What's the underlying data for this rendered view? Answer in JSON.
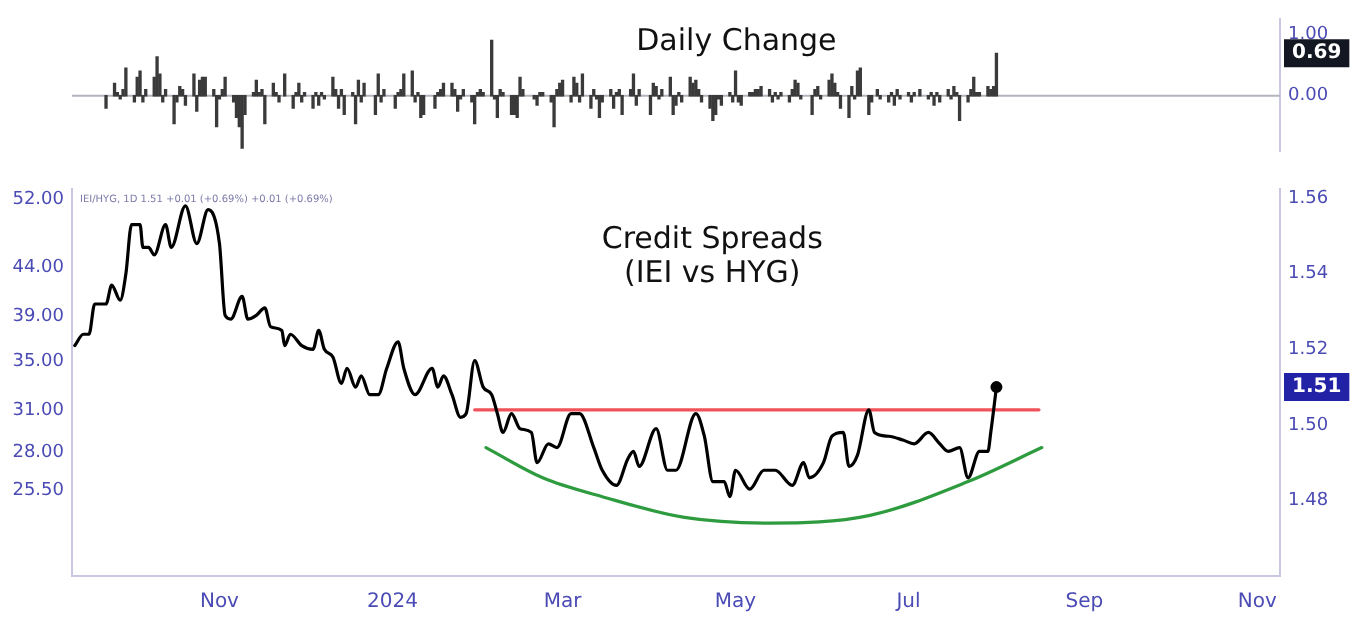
{
  "chart_data": [
    {
      "type": "bar",
      "title": "Daily Change",
      "color": "#3a3a3a",
      "x": [
        "2023-09-22",
        "2023-09-25",
        "2023-09-26",
        "2023-09-27",
        "2023-09-28",
        "2023-09-29",
        "2023-10-02",
        "2023-10-03",
        "2023-10-04",
        "2023-10-05",
        "2023-10-06",
        "2023-10-09",
        "2023-10-10",
        "2023-10-11",
        "2023-10-12",
        "2023-10-13",
        "2023-10-16",
        "2023-10-17",
        "2023-10-18",
        "2023-10-19",
        "2023-10-20",
        "2023-10-23",
        "2023-10-24",
        "2023-10-25",
        "2023-10-26",
        "2023-10-27",
        "2023-10-30",
        "2023-10-31",
        "2023-11-01",
        "2023-11-02",
        "2023-11-03",
        "2023-11-06",
        "2023-11-07",
        "2023-11-08",
        "2023-11-09",
        "2023-11-10",
        "2023-11-13",
        "2023-11-14",
        "2023-11-15",
        "2023-11-16",
        "2023-11-17",
        "2023-11-20",
        "2023-11-21",
        "2023-11-22",
        "2023-11-24",
        "2023-11-27",
        "2023-11-28",
        "2023-11-29",
        "2023-11-30",
        "2023-12-01",
        "2023-12-04",
        "2023-12-05",
        "2023-12-06",
        "2023-12-07",
        "2023-12-08",
        "2023-12-11",
        "2023-12-12",
        "2023-12-13",
        "2023-12-14",
        "2023-12-15",
        "2023-12-18",
        "2023-12-19",
        "2023-12-20",
        "2023-12-21",
        "2023-12-22",
        "2023-12-26",
        "2023-12-27",
        "2023-12-28",
        "2023-12-29",
        "2024-01-02",
        "2024-01-03",
        "2024-01-04",
        "2024-01-05",
        "2024-01-08",
        "2024-01-09",
        "2024-01-10",
        "2024-01-11",
        "2024-01-12",
        "2024-01-16",
        "2024-01-17",
        "2024-01-18",
        "2024-01-19",
        "2024-01-22",
        "2024-01-23",
        "2024-01-24",
        "2024-01-25",
        "2024-01-26",
        "2024-01-29",
        "2024-01-30",
        "2024-01-31",
        "2024-02-01",
        "2024-02-02",
        "2024-02-05",
        "2024-02-06",
        "2024-02-07",
        "2024-02-08",
        "2024-02-09",
        "2024-02-12",
        "2024-02-13",
        "2024-02-14",
        "2024-02-15",
        "2024-02-16",
        "2024-02-20",
        "2024-02-21",
        "2024-02-22",
        "2024-02-23",
        "2024-02-26",
        "2024-02-27",
        "2024-02-28",
        "2024-02-29",
        "2024-03-01",
        "2024-03-04",
        "2024-03-05",
        "2024-03-06",
        "2024-03-07",
        "2024-03-08",
        "2024-03-11",
        "2024-03-12",
        "2024-03-13",
        "2024-03-14",
        "2024-03-15",
        "2024-03-18",
        "2024-03-19",
        "2024-03-20",
        "2024-03-21",
        "2024-03-22",
        "2024-03-25",
        "2024-03-26",
        "2024-03-27",
        "2024-03-28",
        "2024-04-01",
        "2024-04-02",
        "2024-04-03",
        "2024-04-04",
        "2024-04-05",
        "2024-04-08",
        "2024-04-09",
        "2024-04-10",
        "2024-04-11",
        "2024-04-12",
        "2024-04-15",
        "2024-04-16",
        "2024-04-17",
        "2024-04-18",
        "2024-04-19",
        "2024-04-22",
        "2024-04-23",
        "2024-04-24",
        "2024-04-25",
        "2024-04-26",
        "2024-04-29",
        "2024-04-30",
        "2024-05-01",
        "2024-05-02",
        "2024-05-03",
        "2024-05-06",
        "2024-05-07",
        "2024-05-08",
        "2024-05-09",
        "2024-05-10",
        "2024-05-13",
        "2024-05-14",
        "2024-05-15",
        "2024-05-16",
        "2024-05-17",
        "2024-05-20",
        "2024-05-21",
        "2024-05-22",
        "2024-05-23",
        "2024-05-24",
        "2024-05-28",
        "2024-05-29",
        "2024-05-30",
        "2024-05-31",
        "2024-06-03",
        "2024-06-04",
        "2024-06-05",
        "2024-06-06",
        "2024-06-07",
        "2024-06-10",
        "2024-06-11",
        "2024-06-12",
        "2024-06-13",
        "2024-06-14",
        "2024-06-17",
        "2024-06-18",
        "2024-06-20",
        "2024-06-21",
        "2024-06-24",
        "2024-06-25",
        "2024-06-26",
        "2024-06-27",
        "2024-06-28",
        "2024-07-01",
        "2024-07-02",
        "2024-07-03",
        "2024-07-05",
        "2024-07-08",
        "2024-07-09",
        "2024-07-10",
        "2024-07-11",
        "2024-07-12",
        "2024-07-15",
        "2024-07-16",
        "2024-07-17",
        "2024-07-18",
        "2024-07-19",
        "2024-07-22",
        "2024-07-23",
        "2024-07-24",
        "2024-07-25",
        "2024-07-26",
        "2024-07-29",
        "2024-07-30",
        "2024-07-31",
        "2024-08-01"
      ],
      "values": [
        -0.2,
        0.2,
        0.05,
        -0.05,
        0.1,
        0.45,
        -0.1,
        0.3,
        0.4,
        -0.1,
        0.1,
        0.3,
        0.63,
        0.35,
        -0.1,
        0.1,
        -0.45,
        -0.1,
        0.15,
        0.1,
        -0.15,
        0.35,
        -0.25,
        0.25,
        0.3,
        0.3,
        0.1,
        -0.5,
        -0.05,
        0.1,
        0.3,
        -0.1,
        -0.35,
        -0.5,
        -0.85,
        -0.3,
        0.05,
        0.25,
        0.05,
        0.1,
        -0.45,
        0.2,
        0.05,
        -0.1,
        0.35,
        -0.2,
        0.05,
        0.2,
        -0.1,
        0.05,
        -0.2,
        0.05,
        -0.15,
        0.05,
        -0.05,
        0.3,
        0.1,
        -0.2,
        0.1,
        -0.3,
        0.05,
        -0.45,
        0.25,
        -0.1,
        0.2,
        -0.3,
        0.35,
        -0.1,
        0.1,
        -0.2,
        0.05,
        0.1,
        0.35,
        0.4,
        -0.1,
        0.05,
        -0.35,
        -0.3,
        -0.2,
        0.05,
        0.1,
        0.2,
        0.2,
        0.1,
        -0.25,
        -0.05,
        0.1,
        -0.1,
        -0.45,
        0.05,
        0.1,
        0.05,
        0.9,
        -0.05,
        -0.35,
        0.1,
        0.05,
        -0.3,
        -0.3,
        -0.35,
        0.3,
        0.1,
        -0.05,
        -0.15,
        0.05,
        0.05,
        -0.1,
        -0.5,
        0.1,
        0.2,
        0.25,
        -0.1,
        0.3,
        0.2,
        -0.1,
        0.35,
        -0.2,
        0.1,
        -0.05,
        -0.35,
        -0.1,
        0.1,
        -0.2,
        0.05,
        0.1,
        -0.3,
        0.1,
        0.35,
        -0.15,
        0.1,
        -0.3,
        0.2,
        0.15,
        -0.05,
        0.1,
        0.3,
        -0.3,
        -0.15,
        0.05,
        -0.1,
        0.3,
        0.2,
        0.25,
        0.1,
        -0.1,
        -0.2,
        -0.4,
        -0.3,
        -0.05,
        -0.15,
        0.05,
        -0.1,
        0.4,
        -0.1,
        -0.15,
        0.05,
        0.05,
        0.1,
        0.1,
        0.15,
        0.1,
        -0.1,
        0.05,
        -0.05,
        0.05,
        -0.1,
        0.1,
        0.25,
        0.2,
        -0.05,
        -0.3,
        0.1,
        0.15,
        -0.05,
        0.25,
        0.35,
        0.2,
        0.05,
        -0.2,
        -0.35,
        0.15,
        -0.05,
        0.4,
        0.45,
        -0.3,
        -0.1,
        0.1,
        -0.05,
        -0.1,
        0.05,
        -0.15,
        0.1,
        -0.05,
        0.05,
        -0.1,
        0.05,
        0.1,
        -0.05,
        0.05,
        -0.15,
        0.05,
        -0.1,
        0.1,
        -0.05,
        0.15,
        0.05,
        -0.4,
        -0.1,
        0.1,
        0.3,
        0.05,
        0.05,
        0.15,
        0.1,
        0.15,
        0.69
      ],
      "xlim": [
        "2023-09-10",
        "2024-11-09"
      ],
      "ylim": [
        -0.9,
        1.25
      ],
      "yticks": [
        {
          "value": 1,
          "label": "1.00"
        },
        {
          "value": 0,
          "label": "0.00"
        }
      ],
      "tick_labels": "y",
      "grid": false,
      "legend": false,
      "ref_lines": [
        {
          "axis": "y",
          "value": 0,
          "color": "#b2b5be"
        }
      ],
      "annotations": [
        {
          "text": "0.69",
          "y": 0.69
        }
      ]
    },
    {
      "type": "line",
      "title": "Credit Spreads\n(IEI vs HYG)",
      "marker": "none",
      "grid": false,
      "legend": false,
      "series": [
        {
          "color": "#000000",
          "x": [
            "2023-09-11",
            "2023-09-14",
            "2023-09-16",
            "2023-09-18",
            "2023-09-22",
            "2023-09-24",
            "2023-09-27",
            "2023-09-29",
            "2023-10-01",
            "2023-10-04",
            "2023-10-05",
            "2023-10-07",
            "2023-10-09",
            "2023-10-13",
            "2023-10-15",
            "2023-10-20",
            "2023-10-24",
            "2023-10-28",
            "2023-11-01",
            "2023-11-03",
            "2023-11-05",
            "2023-11-09",
            "2023-11-11",
            "2023-11-14",
            "2023-11-17",
            "2023-11-19",
            "2023-11-23",
            "2023-11-24",
            "2023-11-26",
            "2023-11-30",
            "2023-12-04",
            "2023-12-06",
            "2023-12-08",
            "2023-12-11",
            "2023-12-14",
            "2023-12-16",
            "2023-12-19",
            "2023-12-21",
            "2023-12-24",
            "2023-12-27",
            "2023-12-30",
            "2024-01-03",
            "2024-01-05",
            "2024-01-09",
            "2024-01-15",
            "2024-01-17",
            "2024-01-19",
            "2024-01-22",
            "2024-01-25",
            "2024-01-27",
            "2024-01-30",
            "2024-02-02",
            "2024-02-05",
            "2024-02-07",
            "2024-02-09",
            "2024-02-12",
            "2024-02-15",
            "2024-02-19",
            "2024-02-21",
            "2024-02-25",
            "2024-02-28",
            "2024-03-04",
            "2024-03-07",
            "2024-03-12",
            "2024-03-15",
            "2024-03-20",
            "2024-03-24",
            "2024-03-26",
            "2024-03-28",
            "2024-04-03",
            "2024-04-07",
            "2024-04-10",
            "2024-04-17",
            "2024-04-20",
            "2024-04-23",
            "2024-04-27",
            "2024-04-29",
            "2024-05-01",
            "2024-05-06",
            "2024-05-11",
            "2024-05-15",
            "2024-05-21",
            "2024-05-25",
            "2024-05-27",
            "2024-06-01",
            "2024-06-04",
            "2024-06-08",
            "2024-06-10",
            "2024-06-13",
            "2024-06-17",
            "2024-06-19",
            "2024-06-24",
            "2024-06-29",
            "2024-07-03",
            "2024-07-08",
            "2024-07-12",
            "2024-07-15",
            "2024-07-19",
            "2024-07-22",
            "2024-07-26",
            "2024-07-29",
            "2024-07-30",
            "2024-08-01"
          ],
          "values": [
            1.521,
            1.524,
            1.524,
            1.532,
            1.532,
            1.537,
            1.533,
            1.54,
            1.553,
            1.553,
            1.547,
            1.547,
            1.545,
            1.553,
            1.547,
            1.558,
            1.548,
            1.557,
            1.548,
            1.529,
            1.528,
            1.534,
            1.528,
            1.529,
            1.531,
            1.526,
            1.525,
            1.521,
            1.524,
            1.521,
            1.52,
            1.525,
            1.52,
            1.518,
            1.511,
            1.515,
            1.51,
            1.513,
            1.508,
            1.508,
            1.515,
            1.522,
            1.515,
            1.508,
            1.515,
            1.51,
            1.513,
            1.508,
            1.502,
            1.503,
            1.517,
            1.51,
            1.508,
            1.503,
            1.498,
            1.503,
            1.499,
            1.498,
            1.49,
            1.495,
            1.494,
            1.503,
            1.503,
            1.494,
            1.488,
            1.484,
            1.491,
            1.493,
            1.489,
            1.499,
            1.488,
            1.488,
            1.503,
            1.497,
            1.485,
            1.485,
            1.481,
            1.488,
            1.483,
            1.488,
            1.488,
            1.484,
            1.49,
            1.486,
            1.49,
            1.497,
            1.498,
            1.489,
            1.492,
            1.504,
            1.498,
            1.497,
            1.496,
            1.495,
            1.498,
            1.495,
            1.493,
            1.494,
            1.486,
            1.493,
            1.493,
            1.498,
            1.51
          ]
        },
        {
          "type": "line",
          "color": "#f0525a",
          "x": [
            "2024-01-30",
            "2024-08-16"
          ],
          "values": [
            1.504,
            1.504
          ]
        },
        {
          "type": "line",
          "color": "#2e9b3e",
          "x": [
            "2024-02-03",
            "2024-02-23",
            "2024-03-15",
            "2024-04-13",
            "2024-05-13",
            "2024-06-17",
            "2024-07-22",
            "2024-08-17"
          ],
          "values": [
            1.494,
            1.486,
            1.481,
            1.4755,
            1.474,
            1.476,
            1.485,
            1.494
          ]
        },
        {
          "type": "scatter",
          "color": "#000000",
          "marker": "circle",
          "x": [
            "2024-08-01"
          ],
          "values": [
            1.51
          ]
        }
      ],
      "xlim": [
        "2023-09-10",
        "2024-11-09"
      ],
      "xticks": [
        {
          "value": "2023-11-01",
          "label": "Nov"
        },
        {
          "value": "2024-01-01",
          "label": "2024"
        },
        {
          "value": "2024-03-01",
          "label": "Mar"
        },
        {
          "value": "2024-05-01",
          "label": "May"
        },
        {
          "value": "2024-07-01",
          "label": "Jul"
        },
        {
          "value": "2024-09-01",
          "label": "Sep"
        },
        {
          "value": "2024-11-01",
          "label": "Nov"
        }
      ],
      "ylim": [
        1.46,
        1.5625
      ],
      "yticks": [
        {
          "value": 1.56,
          "label": "1.56"
        },
        {
          "value": 1.54,
          "label": "1.54"
        },
        {
          "value": 1.52,
          "label": "1.52"
        },
        {
          "value": 1.5,
          "label": "1.50"
        },
        {
          "value": 1.48,
          "label": "1.48"
        }
      ],
      "y2lim": [
        20.7,
        53.3
      ],
      "log": "y2",
      "y2ticks": [
        {
          "value": 52,
          "label": "52.00"
        },
        {
          "value": 44,
          "label": "44.00"
        },
        {
          "value": 39,
          "label": "39.00"
        },
        {
          "value": 35,
          "label": "35.00"
        },
        {
          "value": 31,
          "label": "31.00"
        },
        {
          "value": 28,
          "label": "28.00"
        },
        {
          "value": 25.5,
          "label": "25.50"
        }
      ],
      "annotations": [
        "IEI/HYG, 1D 1.51 +0.01 (+0.69%) +0.01 (+0.69%)",
        {
          "text": "1.51",
          "y": 1.51
        }
      ]
    }
  ]
}
